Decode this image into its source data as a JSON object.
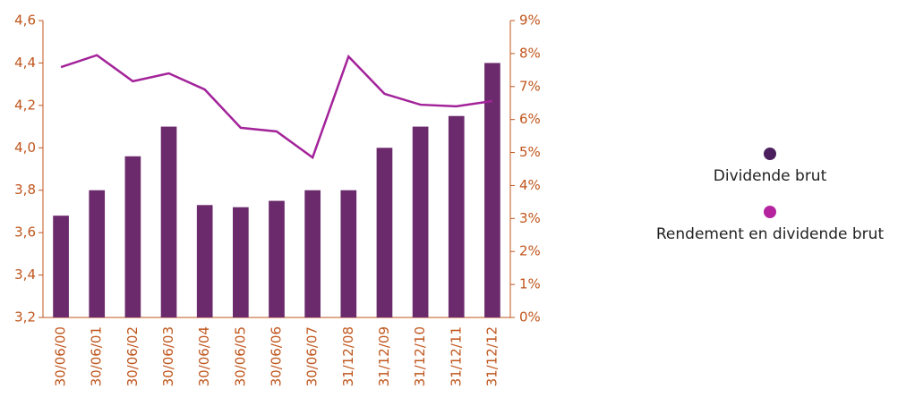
{
  "chart_data": {
    "type": "bar",
    "categories": [
      "30/06/00",
      "30/06/01",
      "30/06/02",
      "30/06/03",
      "30/06/04",
      "30/06/05",
      "30/06/06",
      "30/06/07",
      "31/12/08",
      "31/12/09",
      "31/12/10",
      "31/12/11",
      "31/12/12"
    ],
    "series": [
      {
        "name": "Dividende brut",
        "type": "bar",
        "color": "#6b2a6b",
        "legend_color": "#4b1f5e",
        "values": [
          3.68,
          3.8,
          3.96,
          4.1,
          3.73,
          3.72,
          3.75,
          3.8,
          3.8,
          4.0,
          4.1,
          4.15,
          4.4
        ]
      },
      {
        "name": "Rendement en dividende brut",
        "type": "line",
        "axis": "y2",
        "color": "#a3239a",
        "legend_color": "#b5249e",
        "values": [
          7.59,
          7.95,
          7.16,
          7.4,
          6.91,
          5.75,
          5.64,
          4.85,
          7.91,
          6.78,
          6.45,
          6.4,
          6.56
        ]
      }
    ],
    "ylim": [
      3.2,
      4.6
    ],
    "yticks": [
      {
        "value": 3.2,
        "label": "3,2"
      },
      {
        "value": 3.4,
        "label": "3,4"
      },
      {
        "value": 3.6,
        "label": "3,6"
      },
      {
        "value": 3.8,
        "label": "3,8"
      },
      {
        "value": 4.0,
        "label": "4,0"
      },
      {
        "value": 4.2,
        "label": "4,2"
      },
      {
        "value": 4.4,
        "label": "4,4"
      },
      {
        "value": 4.6,
        "label": "4,6"
      }
    ],
    "y2lim": [
      0,
      9
    ],
    "y2ticks": [
      {
        "value": 0,
        "label": "0%"
      },
      {
        "value": 1,
        "label": "1%"
      },
      {
        "value": 2,
        "label": "2%"
      },
      {
        "value": 3,
        "label": "3%"
      },
      {
        "value": 4,
        "label": "4%"
      },
      {
        "value": 5,
        "label": "5%"
      },
      {
        "value": 6,
        "label": "6%"
      },
      {
        "value": 7,
        "label": "7%"
      },
      {
        "value": 8,
        "label": "8%"
      },
      {
        "value": 9,
        "label": "9%"
      }
    ],
    "axis_color": "#c0561d",
    "legend": "right"
  }
}
